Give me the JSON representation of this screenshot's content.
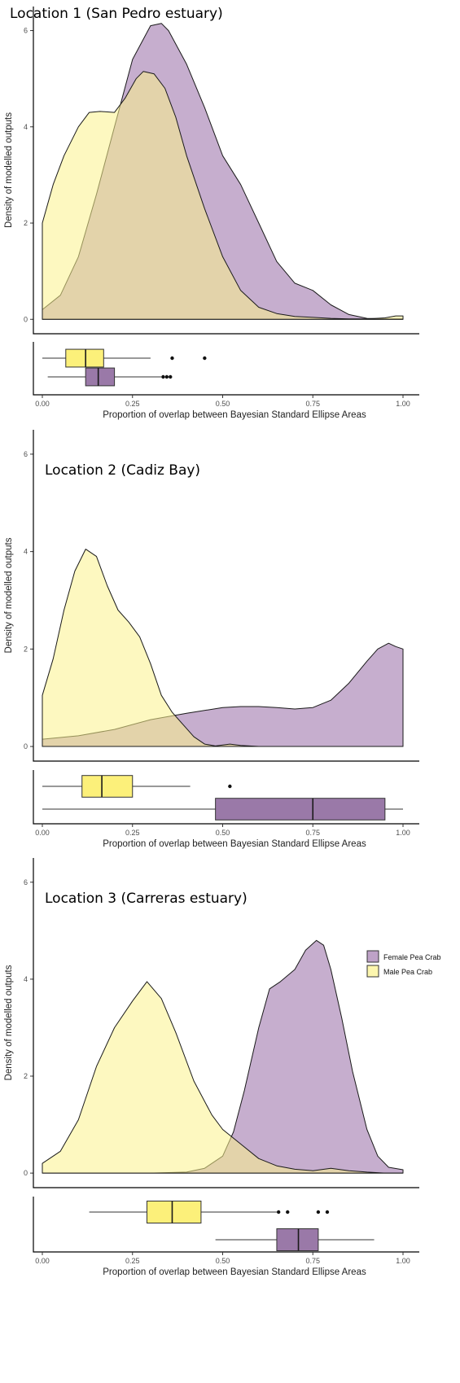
{
  "colors": {
    "female": "#a883b4",
    "male": "#fbf28c",
    "female_box": "#9a79a8",
    "male_box": "#fcf07a"
  },
  "legend": {
    "entries": [
      {
        "key": "female",
        "label": "Female Pea Crab"
      },
      {
        "key": "male",
        "label": "Male Pea Crab"
      }
    ]
  },
  "chart_data": [
    {
      "type": "area",
      "title": "Location 1 (San Pedro estuary)",
      "ylabel": "Density of modelled outputs",
      "xlabel": "Proportion of overlap between Bayesian Standard Ellipse Areas",
      "xlim": [
        0,
        1
      ],
      "ylim": [
        -0.3,
        6.5
      ],
      "yticks": [
        {
          "v": 0,
          "label": "0"
        },
        {
          "v": 2,
          "label": "2"
        },
        {
          "v": 4,
          "label": "4"
        },
        {
          "v": 6,
          "label": "6"
        }
      ],
      "xticks": [
        {
          "v": 0,
          "label": "0.00"
        },
        {
          "v": 0.25,
          "label": "0.25"
        },
        {
          "v": 0.5,
          "label": "0.50"
        },
        {
          "v": 0.75,
          "label": "0.75"
        },
        {
          "v": 1,
          "label": "1.00"
        }
      ],
      "series": [
        {
          "key": "female",
          "x": [
            0,
            0.05,
            0.1,
            0.15,
            0.2,
            0.25,
            0.3,
            0.33,
            0.35,
            0.4,
            0.45,
            0.5,
            0.55,
            0.6,
            0.65,
            0.7,
            0.75,
            0.8,
            0.85,
            0.9,
            0.95,
            1.0
          ],
          "y": [
            0.2,
            0.5,
            1.3,
            2.6,
            4.0,
            5.4,
            6.1,
            6.15,
            6.0,
            5.3,
            4.4,
            3.4,
            2.8,
            2.0,
            1.2,
            0.75,
            0.6,
            0.3,
            0.1,
            0.02,
            0.01,
            0.01
          ]
        },
        {
          "key": "male",
          "x": [
            0,
            0.03,
            0.06,
            0.1,
            0.13,
            0.16,
            0.2,
            0.23,
            0.26,
            0.28,
            0.31,
            0.34,
            0.37,
            0.4,
            0.45,
            0.5,
            0.55,
            0.6,
            0.65,
            0.7,
            0.75,
            0.8,
            0.85,
            0.9,
            0.95,
            0.98,
            1.0
          ],
          "y": [
            2.0,
            2.8,
            3.4,
            4.0,
            4.3,
            4.32,
            4.3,
            4.6,
            5.0,
            5.15,
            5.1,
            4.8,
            4.2,
            3.4,
            2.3,
            1.3,
            0.6,
            0.25,
            0.12,
            0.06,
            0.04,
            0.02,
            0.01,
            0.01,
            0.03,
            0.07,
            0.07
          ]
        }
      ],
      "boxplots": [
        {
          "key": "male",
          "min": 0.0,
          "q1": 0.065,
          "median": 0.12,
          "q3": 0.17,
          "max": 0.3,
          "outliers": [
            0.36,
            0.45
          ]
        },
        {
          "key": "female",
          "min": 0.015,
          "q1": 0.12,
          "median": 0.155,
          "q3": 0.2,
          "max": 0.33,
          "outliers": [
            0.335,
            0.345,
            0.355
          ]
        }
      ]
    },
    {
      "type": "area",
      "title": "Location 2 (Cadiz Bay)",
      "ylabel": "Density of modelled outputs",
      "xlabel": "Proportion of overlap between Bayesian Standard Ellipse Areas",
      "xlim": [
        0,
        1
      ],
      "ylim": [
        -0.3,
        6.5
      ],
      "yticks": [
        {
          "v": 0,
          "label": "0"
        },
        {
          "v": 2,
          "label": "2"
        },
        {
          "v": 4,
          "label": "4"
        },
        {
          "v": 6,
          "label": "6"
        }
      ],
      "xticks": [
        {
          "v": 0,
          "label": "0.00"
        },
        {
          "v": 0.25,
          "label": "0.25"
        },
        {
          "v": 0.5,
          "label": "0.50"
        },
        {
          "v": 0.75,
          "label": "0.75"
        },
        {
          "v": 1,
          "label": "1.00"
        }
      ],
      "series": [
        {
          "key": "female",
          "x": [
            0,
            0.1,
            0.2,
            0.3,
            0.4,
            0.5,
            0.55,
            0.6,
            0.65,
            0.7,
            0.75,
            0.8,
            0.85,
            0.9,
            0.93,
            0.96,
            0.98,
            1.0
          ],
          "y": [
            0.15,
            0.22,
            0.35,
            0.55,
            0.68,
            0.8,
            0.82,
            0.82,
            0.8,
            0.77,
            0.8,
            0.95,
            1.3,
            1.75,
            2.0,
            2.12,
            2.05,
            2.0
          ]
        },
        {
          "key": "male",
          "x": [
            0,
            0.03,
            0.06,
            0.09,
            0.12,
            0.15,
            0.18,
            0.21,
            0.24,
            0.27,
            0.3,
            0.33,
            0.36,
            0.39,
            0.42,
            0.45,
            0.48,
            0.5,
            0.52,
            0.55,
            0.6,
            0.7,
            0.8,
            0.9,
            1.0
          ],
          "y": [
            1.05,
            1.8,
            2.8,
            3.6,
            4.05,
            3.9,
            3.3,
            2.8,
            2.55,
            2.25,
            1.7,
            1.05,
            0.7,
            0.45,
            0.2,
            0.05,
            0.01,
            0.03,
            0.05,
            0.02,
            0.0,
            0.0,
            0.0,
            0.0,
            0.0
          ]
        }
      ],
      "boxplots": [
        {
          "key": "male",
          "min": 0.0,
          "q1": 0.11,
          "median": 0.165,
          "q3": 0.25,
          "max": 0.41,
          "outliers": [
            0.52
          ]
        },
        {
          "key": "female",
          "min": 0.0,
          "q1": 0.48,
          "median": 0.75,
          "q3": 0.95,
          "max": 1.0,
          "outliers": []
        }
      ]
    },
    {
      "type": "area",
      "title": "Location 3 (Carreras estuary)",
      "ylabel": "Density of modelled outputs",
      "xlabel": "Proportion of overlap between Bayesian Standard Ellipse Areas",
      "xlim": [
        0,
        1
      ],
      "ylim": [
        -0.3,
        6.5
      ],
      "yticks": [
        {
          "v": 0,
          "label": "0"
        },
        {
          "v": 2,
          "label": "2"
        },
        {
          "v": 4,
          "label": "4"
        },
        {
          "v": 6,
          "label": "6"
        }
      ],
      "xticks": [
        {
          "v": 0,
          "label": "0.00"
        },
        {
          "v": 0.25,
          "label": "0.25"
        },
        {
          "v": 0.5,
          "label": "0.50"
        },
        {
          "v": 0.75,
          "label": "0.75"
        },
        {
          "v": 1,
          "label": "1.00"
        }
      ],
      "legend_placement": "top-right",
      "series": [
        {
          "key": "female",
          "x": [
            0,
            0.3,
            0.4,
            0.45,
            0.5,
            0.53,
            0.56,
            0.6,
            0.63,
            0.66,
            0.7,
            0.73,
            0.76,
            0.78,
            0.8,
            0.83,
            0.86,
            0.9,
            0.93,
            0.96,
            1.0
          ],
          "y": [
            0.0,
            0.0,
            0.02,
            0.1,
            0.35,
            0.85,
            1.7,
            3.0,
            3.8,
            3.95,
            4.2,
            4.6,
            4.8,
            4.7,
            4.2,
            3.2,
            2.1,
            0.9,
            0.35,
            0.12,
            0.07
          ]
        },
        {
          "key": "male",
          "x": [
            0,
            0.05,
            0.1,
            0.15,
            0.2,
            0.25,
            0.29,
            0.33,
            0.37,
            0.42,
            0.47,
            0.5,
            0.55,
            0.6,
            0.65,
            0.7,
            0.75,
            0.8,
            0.85,
            0.9,
            0.95,
            1.0
          ],
          "y": [
            0.2,
            0.45,
            1.1,
            2.2,
            3.0,
            3.55,
            3.95,
            3.6,
            2.9,
            1.9,
            1.2,
            0.9,
            0.6,
            0.3,
            0.15,
            0.08,
            0.05,
            0.1,
            0.05,
            0.02,
            0.0,
            0.0
          ]
        }
      ],
      "boxplots": [
        {
          "key": "male",
          "min": 0.13,
          "q1": 0.29,
          "median": 0.36,
          "q3": 0.44,
          "max": 0.65,
          "outliers": [
            0.655,
            0.68,
            0.765,
            0.79
          ]
        },
        {
          "key": "female",
          "min": 0.48,
          "q1": 0.65,
          "median": 0.71,
          "q3": 0.765,
          "max": 0.92,
          "outliers": []
        }
      ]
    }
  ]
}
